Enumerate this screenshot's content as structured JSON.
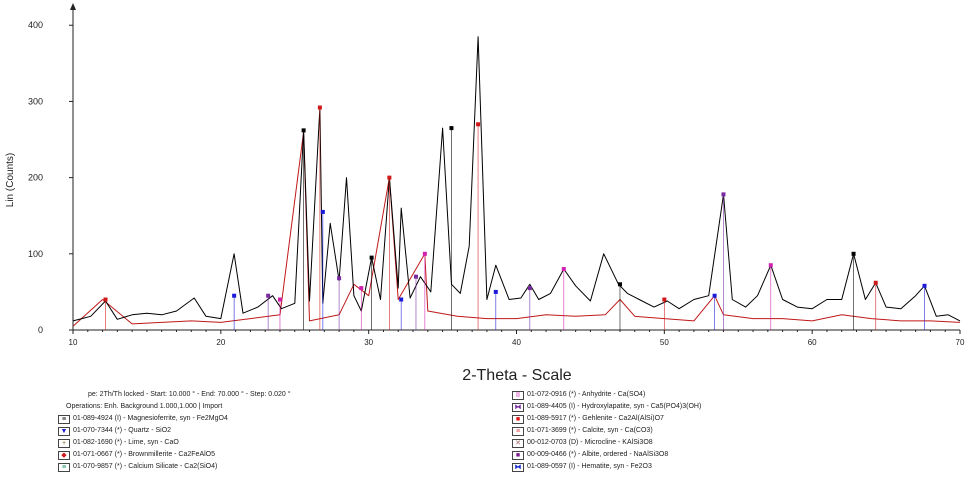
{
  "chart_data": {
    "type": "line",
    "title": "",
    "xlabel": "2-Theta - Scale",
    "ylabel": "Lin (Counts)",
    "xlim": [
      10,
      70
    ],
    "ylim": [
      0,
      420
    ],
    "x_ticks": [
      "10",
      "20",
      "30",
      "40",
      "50",
      "60",
      "70"
    ],
    "y_ticks": [
      "0",
      "100",
      "200",
      "300",
      "400"
    ],
    "grid": false,
    "series": [
      {
        "color": "#000000",
        "x": [
          10,
          10.6,
          11.2,
          12.2,
          13.0,
          14.0,
          15.0,
          16.0,
          17.0,
          18.2,
          19.0,
          20.0,
          20.9,
          21.5,
          22.5,
          23.5,
          24.1,
          25.0,
          25.6,
          26.0,
          26.7,
          26.9,
          27.4,
          28.0,
          28.5,
          29.0,
          29.5,
          30.2,
          30.8,
          31.4,
          32.0,
          32.2,
          32.8,
          33.5,
          34.2,
          35.0,
          35.6,
          36.2,
          36.8,
          37.4,
          38.0,
          38.6,
          39.5,
          40.3,
          40.9,
          41.5,
          42.3,
          43.2,
          44.0,
          45.0,
          45.9,
          46.9,
          47.5,
          48.3,
          49.3,
          50.2,
          51.0,
          52.0,
          53.0,
          54.0,
          54.6,
          55.5,
          56.3,
          57.2,
          58.0,
          59.0,
          60.0,
          61.0,
          62.0,
          62.8,
          63.6,
          64.3,
          65.0,
          66.0,
          67.0,
          67.6,
          68.4,
          69.2,
          70.0
        ],
        "y": [
          12,
          15,
          18,
          38,
          14,
          20,
          22,
          20,
          25,
          42,
          18,
          15,
          100,
          22,
          30,
          45,
          28,
          35,
          262,
          38,
          292,
          35,
          140,
          65,
          200,
          45,
          25,
          95,
          40,
          200,
          55,
          160,
          42,
          70,
          50,
          265,
          60,
          48,
          110,
          385,
          40,
          85,
          40,
          42,
          60,
          40,
          48,
          80,
          58,
          38,
          100,
          60,
          48,
          40,
          30,
          38,
          28,
          40,
          45,
          178,
          40,
          30,
          45,
          85,
          40,
          30,
          28,
          40,
          40,
          100,
          40,
          62,
          30,
          28,
          45,
          58,
          18,
          20,
          12
        ]
      },
      {
        "color": "#c01818",
        "x": [
          10,
          12,
          14,
          16,
          18,
          20,
          22,
          24,
          25.6,
          26,
          28,
          29,
          30,
          31.4,
          32,
          33.8,
          34,
          36,
          38,
          40,
          42,
          44,
          46,
          47,
          48,
          50,
          52,
          53.4,
          54,
          56,
          58,
          60,
          62,
          64,
          66,
          68,
          70
        ],
        "y": [
          5,
          40,
          8,
          10,
          12,
          10,
          15,
          20,
          260,
          12,
          20,
          60,
          45,
          200,
          40,
          100,
          25,
          18,
          15,
          15,
          20,
          18,
          20,
          40,
          18,
          15,
          12,
          45,
          20,
          15,
          15,
          12,
          20,
          15,
          12,
          12,
          10
        ]
      }
    ],
    "peak_markers": [
      {
        "x": 12.2,
        "y": 40
      },
      {
        "x": 20.9,
        "y": 45
      },
      {
        "x": 23.2,
        "y": 45
      },
      {
        "x": 24.0,
        "y": 40
      },
      {
        "x": 25.6,
        "y": 262
      },
      {
        "x": 26.7,
        "y": 292
      },
      {
        "x": 26.9,
        "y": 155
      },
      {
        "x": 28.0,
        "y": 68
      },
      {
        "x": 29.5,
        "y": 55
      },
      {
        "x": 30.2,
        "y": 95
      },
      {
        "x": 31.4,
        "y": 200
      },
      {
        "x": 32.2,
        "y": 40
      },
      {
        "x": 33.2,
        "y": 70
      },
      {
        "x": 33.8,
        "y": 100
      },
      {
        "x": 35.6,
        "y": 265
      },
      {
        "x": 37.4,
        "y": 270
      },
      {
        "x": 38.6,
        "y": 50
      },
      {
        "x": 40.9,
        "y": 55
      },
      {
        "x": 43.2,
        "y": 80
      },
      {
        "x": 47.0,
        "y": 60
      },
      {
        "x": 50.0,
        "y": 40
      },
      {
        "x": 53.4,
        "y": 45
      },
      {
        "x": 54.0,
        "y": 178
      },
      {
        "x": 57.2,
        "y": 85
      },
      {
        "x": 62.8,
        "y": 100
      },
      {
        "x": 64.3,
        "y": 62
      },
      {
        "x": 67.6,
        "y": 58
      }
    ]
  },
  "legend": {
    "info_lines": [
      "pe: 2Th/Th locked - Start: 10.000 ° - End: 70.000 ° - Step: 0.020 °",
      "Operations: Enh. Background 1.000,1.000 | Import"
    ],
    "left_items": [
      {
        "label": "01-089-4924 (I) - Magnesioferrite, syn - Fe2MgO4",
        "color": "#000000",
        "glyph": "≡",
        "icon": "magnesioferrite-marker-icon"
      },
      {
        "label": "01-070-7344 (*) - Quartz - SiO2",
        "color": "#1a1ad8",
        "glyph": "▼",
        "icon": "quartz-marker-icon"
      },
      {
        "label": "01-082-1690 (*) - Lime, syn - CaO",
        "color": "#8a6a2a",
        "glyph": "+",
        "icon": "lime-marker-icon"
      },
      {
        "label": "01-071-0667 (*) - Brownmillerite - Ca2FeAlO5",
        "color": "#d01818",
        "glyph": "◆",
        "icon": "brownmillerite-marker-icon"
      },
      {
        "label": "01-070-9857 (*) - Calcium Silicate - Ca2(SiO4)",
        "color": "#1a8a6a",
        "glyph": "≡",
        "icon": "calcium-silicate-marker-icon"
      }
    ],
    "right_items": [
      {
        "label": "01-072-0916 (*) - Anhydrite - Ca(SO4)",
        "color": "#d020b0",
        "glyph": "II",
        "icon": "anhydrite-marker-icon"
      },
      {
        "label": "01-089-4405 (I) - Hydroxylapatite, syn - Ca5(PO4)3(OH)",
        "color": "#7a2aa0",
        "glyph": "⧓",
        "icon": "hydroxylapatite-marker-icon"
      },
      {
        "label": "01-089-5917 (*) - Gehlenite - Ca2Al(AlSi)O7",
        "color": "#e01010",
        "glyph": "■",
        "icon": "gehlenite-marker-icon"
      },
      {
        "label": "01-071-3699 (*) - Calcite, syn - Ca(CO3)",
        "color": "#e04040",
        "glyph": "≡",
        "icon": "calcite-marker-icon"
      },
      {
        "label": "00-012-0703 (D) - Microcline - KAlSi3O8",
        "color": "#a06060",
        "glyph": "✕",
        "icon": "microcline-marker-icon"
      },
      {
        "label": "00-009-0466 (*) - Albite, ordered - NaAlSi3O8",
        "color": "#7a1a8a",
        "glyph": "■",
        "icon": "albite-marker-icon"
      },
      {
        "label": "01-089-0597 (I) - Hematite, syn - Fe2O3",
        "color": "#1a2ad0",
        "glyph": "⧓",
        "icon": "hematite-marker-icon"
      }
    ]
  }
}
